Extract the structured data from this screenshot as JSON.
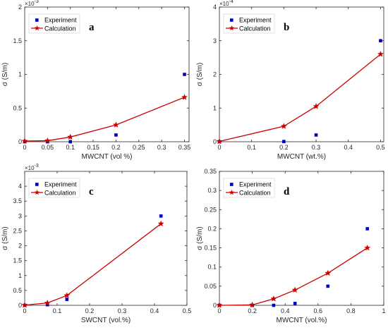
{
  "colors": {
    "experiment": "#0000cc",
    "calculation": "#cc0000",
    "axis": "#262626"
  },
  "chart_data": [
    {
      "type": "scatter+line",
      "panel": "a",
      "xlabel": "MWCNT (vol %)",
      "ylabel": "σ (S/m)",
      "y_multiplier": "×10^-3",
      "xlim": [
        0,
        0.36
      ],
      "ylim": [
        0,
        0.002
      ],
      "xticks": [
        0,
        0.05,
        0.1,
        0.15,
        0.2,
        0.25,
        0.3,
        0.35
      ],
      "xtick_labels": [
        "0",
        "0.05",
        "0.1",
        "0.15",
        "0.2",
        "0.25",
        "0.3",
        "0.35"
      ],
      "yticks": [
        0,
        0.0005,
        0.001,
        0.0015,
        0.002
      ],
      "ytick_labels": [
        "0",
        "0.5",
        "1",
        "1.5",
        "2"
      ],
      "legend": {
        "position": "top-left",
        "entries": [
          "Experiment",
          "Calculation"
        ]
      },
      "series": [
        {
          "name": "Experiment",
          "style": "markers",
          "x": [
            0,
            0.05,
            0.1,
            0.2,
            0.35
          ],
          "y": [
            0,
            0,
            0,
            0.0001,
            0.001
          ]
        },
        {
          "name": "Calculation",
          "style": "line+star",
          "x": [
            0,
            0.05,
            0.1,
            0.2,
            0.35
          ],
          "y": [
            1e-05,
            1.5e-05,
            7e-05,
            0.00025,
            0.00066
          ]
        }
      ]
    },
    {
      "type": "scatter+line",
      "panel": "b",
      "xlabel": "MWCNT (wt.%)",
      "ylabel": "σ (S/m)",
      "y_multiplier": "×10^-4",
      "xlim": [
        0,
        0.51
      ],
      "ylim": [
        0,
        0.0004
      ],
      "xticks": [
        0,
        0.1,
        0.2,
        0.3,
        0.4,
        0.5
      ],
      "xtick_labels": [
        "0",
        "0.1",
        "0.2",
        "0.3",
        "0.4",
        "0.5"
      ],
      "yticks": [
        0,
        0.0001,
        0.0002,
        0.0003,
        0.0004
      ],
      "ytick_labels": [
        "0",
        "1",
        "2",
        "3",
        "4"
      ],
      "legend": {
        "position": "top-left",
        "entries": [
          "Experiment",
          "Calculation"
        ]
      },
      "series": [
        {
          "name": "Experiment",
          "style": "markers",
          "x": [
            0,
            0.2,
            0.3,
            0.5
          ],
          "y": [
            0,
            5e-07,
            2e-05,
            0.0003
          ]
        },
        {
          "name": "Calculation",
          "style": "line+star",
          "x": [
            0,
            0.2,
            0.3,
            0.5
          ],
          "y": [
            1e-06,
            4.6e-05,
            0.000105,
            0.00026
          ]
        }
      ]
    },
    {
      "type": "scatter+line",
      "panel": "c",
      "xlabel": "SWCNT (vol.%)",
      "ylabel": "σ (S/m)",
      "y_multiplier": "×10^-3",
      "xlim": [
        0,
        0.5
      ],
      "ylim": [
        0,
        0.0045
      ],
      "xticks": [
        0,
        0.1,
        0.2,
        0.3,
        0.4,
        0.5
      ],
      "xtick_labels": [
        "0",
        "0.1",
        "0.2",
        "0.3",
        "0.4",
        "0.5"
      ],
      "yticks": [
        0,
        0.0005,
        0.001,
        0.0015,
        0.002,
        0.0025,
        0.003,
        0.0035,
        0.004
      ],
      "ytick_labels": [
        "0",
        "0.5",
        "1",
        "1.5",
        "2",
        "2.5",
        "3",
        "3.5",
        "4"
      ],
      "legend": {
        "position": "top-left",
        "entries": [
          "Experiment",
          "Calculation"
        ]
      },
      "series": [
        {
          "name": "Experiment",
          "style": "markers",
          "x": [
            0,
            0.07,
            0.13,
            0.42
          ],
          "y": [
            0,
            2e-05,
            0.0002,
            0.003
          ]
        },
        {
          "name": "Calculation",
          "style": "line+star",
          "x": [
            0,
            0.07,
            0.13,
            0.42
          ],
          "y": [
            5e-06,
            8e-05,
            0.00033,
            0.00274
          ]
        }
      ]
    },
    {
      "type": "scatter+line",
      "panel": "d",
      "xlabel": "MWCNT (vol.%)",
      "ylabel": "σ (S/m)",
      "y_multiplier": "",
      "xlim": [
        0,
        1
      ],
      "ylim": [
        0,
        0.35
      ],
      "xticks": [
        0,
        0.2,
        0.4,
        0.6,
        0.8,
        1
      ],
      "xtick_labels": [
        "0",
        "0.2",
        "0.4",
        "0.6",
        "0.8",
        "1"
      ],
      "yticks": [
        0,
        0.05,
        0.1,
        0.15,
        0.2,
        0.25,
        0.3,
        0.35
      ],
      "ytick_labels": [
        "0",
        "0.05",
        "0.1",
        "0.15",
        "0.2",
        "0.25",
        "0.3",
        "0.35"
      ],
      "legend": {
        "position": "top-left",
        "entries": [
          "Experiment",
          "Calculation"
        ]
      },
      "series": [
        {
          "name": "Experiment",
          "style": "markers",
          "x": [
            0,
            0.2,
            0.33,
            0.46,
            0.66,
            0.9
          ],
          "y": [
            0,
            0,
            0,
            0.005,
            0.05,
            0.2
          ]
        },
        {
          "name": "Calculation",
          "style": "line+star",
          "x": [
            0,
            0.2,
            0.33,
            0.46,
            0.66,
            0.9
          ],
          "y": [
            0,
            0.001,
            0.017,
            0.04,
            0.084,
            0.15
          ]
        }
      ]
    }
  ]
}
